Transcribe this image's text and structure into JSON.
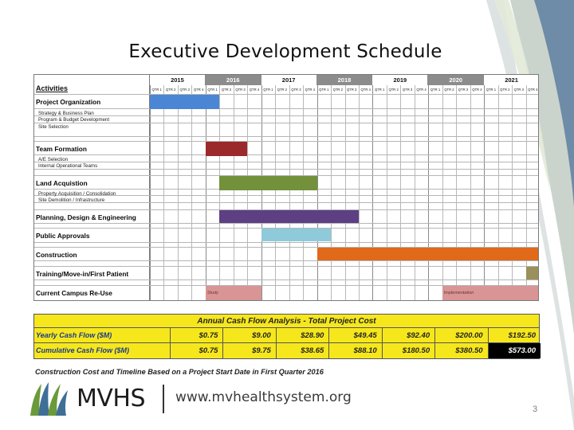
{
  "slide": {
    "title": "Executive Development Schedule",
    "page_number": "3"
  },
  "gantt": {
    "activities_header": "Activities",
    "years": [
      {
        "label": "2015",
        "shaded": false
      },
      {
        "label": "2016",
        "shaded": true
      },
      {
        "label": "2017",
        "shaded": false
      },
      {
        "label": "2018",
        "shaded": true
      },
      {
        "label": "2019",
        "shaded": false
      },
      {
        "label": "2020",
        "shaded": true
      },
      {
        "label": "2021",
        "shaded": false
      }
    ],
    "quarters": [
      "QTR 1",
      "QTR 2",
      "QTR 3",
      "QTR 4"
    ],
    "rows": [
      {
        "title": "Project Organization",
        "sub": "Strategy & Business Plan\nProgram & Budget Development\nSite Selection",
        "bar": {
          "start_q": 0,
          "end_q": 5,
          "color": "#4a86d4"
        }
      },
      {
        "title": "Team Formation",
        "sub": "A/E Selection\nInternal Operational Teams",
        "bar": {
          "start_q": 4,
          "end_q": 7,
          "color": "#9b2a2a"
        }
      },
      {
        "title": "Land Acquistion",
        "sub": "Property Acquisition / Consolidation\nSite Demolition / Infrastructure",
        "bar": {
          "start_q": 5,
          "end_q": 12,
          "color": "#72913a"
        }
      },
      {
        "title": "Planning, Design & Engineering",
        "sub": "",
        "bar": {
          "start_q": 5,
          "end_q": 15,
          "color": "#5d3f84"
        }
      },
      {
        "title": "Public Approvals",
        "sub": "",
        "bar": {
          "start_q": 8,
          "end_q": 13,
          "color": "#8ecada"
        }
      },
      {
        "title": "Construction",
        "sub": "",
        "bar": {
          "start_q": 12,
          "end_q": 28,
          "color": "#e0691a"
        }
      },
      {
        "title": "Training/Move-in/First Patient",
        "sub": "",
        "bar": {
          "start_q": 27,
          "end_q": 31,
          "color": "#9a915a"
        }
      },
      {
        "title": "Current Campus Re-Use",
        "sub": "",
        "bar": {
          "start_q": 4,
          "end_q": 8,
          "color": "#d99595"
        },
        "bar2": {
          "start_q": 21,
          "end_q": 31,
          "color": "#d99595"
        },
        "bar_label": "Study",
        "bar2_label": "Implementation"
      }
    ]
  },
  "cash_flow": {
    "title": "Annual Cash Flow Analysis - Total Project Cost",
    "rows": [
      {
        "label": "Yearly Cash Flow ($M)",
        "values": [
          "$0.75",
          "$9.00",
          "$28.90",
          "$49.45",
          "$92.40",
          "$200.00",
          "$192.50"
        ]
      },
      {
        "label": "Cumulative Cash Flow ($M)",
        "values": [
          "$0.75",
          "$9.75",
          "$38.65",
          "$88.10",
          "$180.50",
          "$380.50",
          "$573.00"
        ]
      }
    ],
    "highlight_color": "#f6e71d"
  },
  "footnote": "Construction Cost and Timeline Based on a Project Start Date in First Quarter 2016",
  "branding": {
    "name": "MVHS",
    "url": "www.mvhealthsystem.org"
  },
  "icons": {
    "logo": "mvhs-logo-icon"
  }
}
